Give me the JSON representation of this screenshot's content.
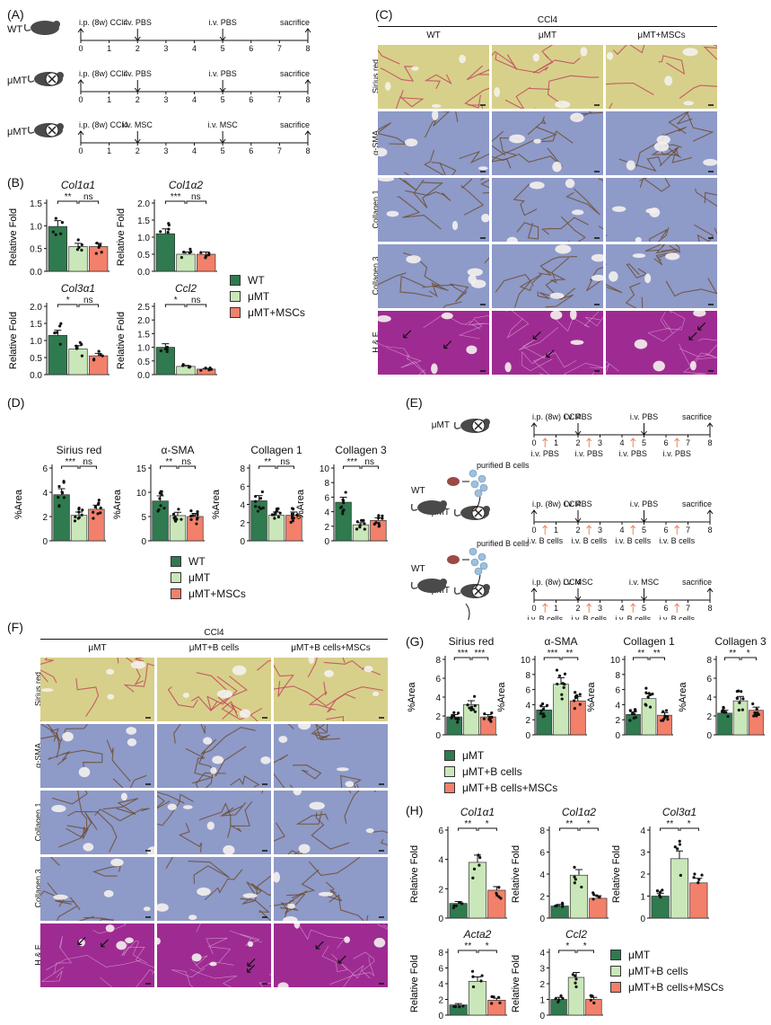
{
  "colors": {
    "wt": "#2f7a4e",
    "umt": "#c9e7b8",
    "msc": "#f2806a",
    "sirius_bg": "#d7d08a",
    "sirius_line": "#c0405a",
    "ihc_bg": "#8e9ac8",
    "ihc_line": "#6a4a2a",
    "he_bg": "#9e2b92",
    "arrow_orange": "#f08060"
  },
  "panels": {
    "A": "(A)",
    "B": "(B)",
    "C": "(C)",
    "D": "(D)",
    "E": "(E)",
    "F": "(F)",
    "G": "(G)",
    "H": "(H)"
  },
  "panelA": {
    "rows": [
      {
        "mouse": "WT",
        "top": [
          "i.p. (8w) CCl4",
          "i.v. PBS",
          "i.v. PBS",
          "sacrifice"
        ]
      },
      {
        "mouse": "μMT",
        "top": [
          "i.p. (8w) CCl4",
          "i.v. PBS",
          "i.v. PBS",
          "sacrifice"
        ]
      },
      {
        "mouse": "μMT",
        "top": [
          "i.p. (8w) CCl4",
          "i.v. MSC",
          "i.v. MSC",
          "sacrifice"
        ]
      }
    ],
    "ticks": [
      "0",
      "1",
      "2",
      "3",
      "4",
      "5",
      "6",
      "7",
      "8"
    ]
  },
  "panelB": {
    "ylabel": "Relative Fold",
    "legend": [
      "WT",
      "μMT",
      "μMT+MSCs"
    ],
    "charts": [
      {
        "title": "Col1α1",
        "sig": [
          "**",
          "ns"
        ],
        "yticks": [
          "0.0",
          "0.5",
          "1.0",
          "1.5"
        ]
      },
      {
        "title": "Col1α2",
        "sig": [
          "***",
          "ns"
        ],
        "yticks": [
          "0.0",
          "0.5",
          "1.0",
          "1.5",
          "2.0"
        ]
      },
      {
        "title": "Col3α1",
        "sig": [
          "*",
          "ns"
        ],
        "yticks": [
          "0.0",
          "0.5",
          "1.0",
          "1.5",
          "2.0"
        ]
      },
      {
        "title": "Ccl2",
        "sig": [
          "*",
          "ns"
        ],
        "yticks": [
          "0.0",
          "0.5",
          "1.0",
          "1.5",
          "2.0",
          "2.5"
        ]
      }
    ]
  },
  "panelC": {
    "header": "CCl4",
    "cols": [
      "WT",
      "μMT",
      "μMT+MSCs"
    ],
    "rows": [
      "Sirius red",
      "α-SMA",
      "Collagen 1",
      "Collagen 3",
      "H & E"
    ]
  },
  "panelD": {
    "ylabel": "%Area",
    "legend": [
      "WT",
      "μMT",
      "μMT+MSCs"
    ],
    "charts": [
      {
        "title": "Sirius red",
        "sig": [
          "***",
          "ns"
        ],
        "yticks": [
          "0",
          "2",
          "4",
          "6"
        ]
      },
      {
        "title": "α-SMA",
        "sig": [
          "**",
          "ns"
        ],
        "yticks": [
          "0",
          "5",
          "10",
          "15"
        ]
      },
      {
        "title": "Collagen 1",
        "sig": [
          "**",
          "ns"
        ],
        "yticks": [
          "0",
          "2",
          "4",
          "6",
          "8"
        ]
      },
      {
        "title": "Collagen 3",
        "sig": [
          "***",
          "ns"
        ],
        "yticks": [
          "0",
          "2",
          "4",
          "6",
          "8",
          "10"
        ]
      }
    ]
  },
  "panelE": {
    "rows": [
      {
        "mouse": "μMT",
        "top": [
          "i.p. (8w) CCl4",
          "i.v. PBS",
          "i.v. PBS",
          "sacrifice"
        ],
        "bottom": [
          "i.v. PBS",
          "i.v. PBS",
          "i.v. PBS",
          "i.v. PBS"
        ],
        "extra": []
      },
      {
        "mouse": "μMT",
        "top": [
          "i.p. (8w) CCl4",
          "i.v. PBS",
          "i.v. PBS",
          "sacrifice"
        ],
        "bottom": [
          "i.v. B cells",
          "i.v. B cells",
          "i.v. B cells",
          "i.v. B cells"
        ],
        "extra": [
          "WT",
          "purified B cells"
        ]
      },
      {
        "mouse": "μMT",
        "top": [
          "i.p. (8w) CCl4",
          "i.v. MSC",
          "i.v. MSC",
          "sacrifice"
        ],
        "bottom": [
          "i.v. B cells",
          "i.v. B cells",
          "i.v. B cells",
          "i.v. B cells"
        ],
        "extra": [
          "WT",
          "purified B cells",
          "MSC"
        ]
      }
    ],
    "ticks": [
      "0",
      "1",
      "2",
      "3",
      "4",
      "5",
      "6",
      "7",
      "8"
    ]
  },
  "panelF": {
    "header": "CCl4",
    "cols": [
      "μMT",
      "μMT+B cells",
      "μMT+B cells+MSCs"
    ],
    "rows": [
      "Sirius red",
      "α-SMA",
      "Collagen 1",
      "Collagen 3",
      "H & E"
    ]
  },
  "panelG": {
    "ylabel": "%Area",
    "legend": [
      "μMT",
      "μMT+B cells",
      "μMT+B cells+MSCs"
    ],
    "charts": [
      {
        "title": "Sirius red",
        "sig": [
          "***",
          "***"
        ],
        "yticks": [
          "0",
          "2",
          "4",
          "6",
          "8"
        ]
      },
      {
        "title": "α-SMA",
        "sig": [
          "***",
          "**"
        ],
        "yticks": [
          "0",
          "2",
          "4",
          "6",
          "8",
          "10"
        ]
      },
      {
        "title": "Collagen 1",
        "sig": [
          "**",
          "**"
        ],
        "yticks": [
          "0",
          "2",
          "4",
          "6",
          "8",
          "10"
        ]
      },
      {
        "title": "Collagen 3",
        "sig": [
          "**",
          "*"
        ],
        "yticks": [
          "0",
          "2",
          "4",
          "6",
          "8"
        ]
      }
    ]
  },
  "panelH": {
    "ylabel": "Relative Fold",
    "legend": [
      "μMT",
      "μMT+B cells",
      "μMT+B cells+MSCs"
    ],
    "charts": [
      {
        "title": "Col1α1",
        "sig": [
          "**",
          "*"
        ],
        "yticks": [
          "0",
          "2",
          "4",
          "6"
        ]
      },
      {
        "title": "Col1α2",
        "sig": [
          "**",
          "*"
        ],
        "yticks": [
          "0",
          "2",
          "4",
          "6",
          "8"
        ]
      },
      {
        "title": "Col3α1",
        "sig": [
          "**",
          "*"
        ],
        "yticks": [
          "0",
          "1",
          "2",
          "3",
          "4"
        ]
      },
      {
        "title": "Acta2",
        "sig": [
          "**",
          "*"
        ],
        "yticks": [
          "0",
          "2",
          "4",
          "6",
          "8"
        ]
      },
      {
        "title": "Ccl2",
        "sig": [
          "*",
          "*"
        ],
        "yticks": [
          "0",
          "1",
          "2",
          "3",
          "4"
        ]
      }
    ]
  },
  "chart_data": [
    {
      "type": "bar",
      "title": "Col1α1",
      "categories": [
        "WT",
        "μMT",
        "μMT+MSCs"
      ],
      "values": [
        1.05,
        0.58,
        0.58
      ],
      "ylim": [
        0,
        1.6
      ],
      "ylabel": "Relative Fold"
    },
    {
      "type": "bar",
      "title": "Col1α2",
      "categories": [
        "WT",
        "μMT",
        "μMT+MSCs"
      ],
      "values": [
        1.1,
        0.5,
        0.5
      ],
      "ylim": [
        0,
        2.0
      ],
      "ylabel": "Relative Fold"
    },
    {
      "type": "bar",
      "title": "Col3α1",
      "categories": [
        "WT",
        "μMT",
        "μMT+MSCs"
      ],
      "values": [
        1.15,
        0.75,
        0.55
      ],
      "ylim": [
        0,
        2.0
      ],
      "ylabel": "Relative Fold"
    },
    {
      "type": "bar",
      "title": "Ccl2",
      "categories": [
        "WT",
        "μMT",
        "μMT+MSCs"
      ],
      "values": [
        1.0,
        0.3,
        0.2
      ],
      "ylim": [
        0,
        2.5
      ],
      "ylabel": "Relative Fold"
    },
    {
      "type": "bar",
      "title": "Sirius red",
      "categories": [
        "WT",
        "μMT",
        "μMT+MSCs"
      ],
      "values": [
        3.8,
        2.1,
        2.6
      ],
      "ylim": [
        0,
        6
      ],
      "ylabel": "%Area"
    },
    {
      "type": "bar",
      "title": "α-SMA",
      "categories": [
        "WT",
        "μMT",
        "μMT+MSCs"
      ],
      "values": [
        8.2,
        5.2,
        5.0
      ],
      "ylim": [
        0,
        15
      ],
      "ylabel": "%Area"
    },
    {
      "type": "bar",
      "title": "Collagen 1",
      "categories": [
        "WT",
        "μMT",
        "μMT+MSCs"
      ],
      "values": [
        4.4,
        2.8,
        2.8
      ],
      "ylim": [
        0,
        8
      ],
      "ylabel": "%Area"
    },
    {
      "type": "bar",
      "title": "Collagen 3",
      "categories": [
        "WT",
        "μMT",
        "μMT+MSCs"
      ],
      "values": [
        5.3,
        2.2,
        2.8
      ],
      "ylim": [
        0,
        10
      ],
      "ylabel": "%Area"
    },
    {
      "type": "bar",
      "title": "Sirius red",
      "categories": [
        "μMT",
        "μMT+B cells",
        "μMT+B cells+MSCs"
      ],
      "values": [
        1.9,
        3.2,
        1.9
      ],
      "ylim": [
        0,
        8
      ],
      "ylabel": "%Area"
    },
    {
      "type": "bar",
      "title": "α-SMA",
      "categories": [
        "μMT",
        "μMT+B cells",
        "μMT+B cells+MSCs"
      ],
      "values": [
        3.3,
        6.7,
        4.5
      ],
      "ylim": [
        0,
        10
      ],
      "ylabel": "%Area"
    },
    {
      "type": "bar",
      "title": "Collagen 1",
      "categories": [
        "μMT",
        "μMT+B cells",
        "μMT+B cells+MSCs"
      ],
      "values": [
        2.7,
        4.8,
        2.6
      ],
      "ylim": [
        0,
        10
      ],
      "ylabel": "%Area"
    },
    {
      "type": "bar",
      "title": "Collagen 3",
      "categories": [
        "μMT",
        "μMT+B cells",
        "μMT+B cells+MSCs"
      ],
      "values": [
        2.3,
        3.6,
        2.6
      ],
      "ylim": [
        0,
        8
      ],
      "ylabel": "%Area"
    },
    {
      "type": "bar",
      "title": "Col1α1",
      "categories": [
        "μMT",
        "μMT+B cells",
        "μMT+B cells+MSCs"
      ],
      "values": [
        1.0,
        3.8,
        1.9
      ],
      "ylim": [
        0,
        6
      ],
      "ylabel": "Relative Fold"
    },
    {
      "type": "bar",
      "title": "Col1α2",
      "categories": [
        "μMT",
        "μMT+B cells",
        "μMT+B cells+MSCs"
      ],
      "values": [
        1.1,
        3.9,
        1.8
      ],
      "ylim": [
        0,
        8
      ],
      "ylabel": "Relative Fold"
    },
    {
      "type": "bar",
      "title": "Col3α1",
      "categories": [
        "μMT",
        "μMT+B cells",
        "μMT+B cells+MSCs"
      ],
      "values": [
        1.0,
        2.7,
        1.6
      ],
      "ylim": [
        0,
        4
      ],
      "ylabel": "Relative Fold"
    },
    {
      "type": "bar",
      "title": "Acta2",
      "categories": [
        "μMT",
        "μMT+B cells",
        "μMT+B cells+MSCs"
      ],
      "values": [
        1.3,
        4.3,
        1.9
      ],
      "ylim": [
        0,
        8
      ],
      "ylabel": "Relative Fold"
    },
    {
      "type": "bar",
      "title": "Ccl2",
      "categories": [
        "μMT",
        "μMT+B cells",
        "μMT+B cells+MSCs"
      ],
      "values": [
        1.0,
        2.4,
        1.0
      ],
      "ylim": [
        0,
        4
      ],
      "ylabel": "Relative Fold"
    }
  ]
}
